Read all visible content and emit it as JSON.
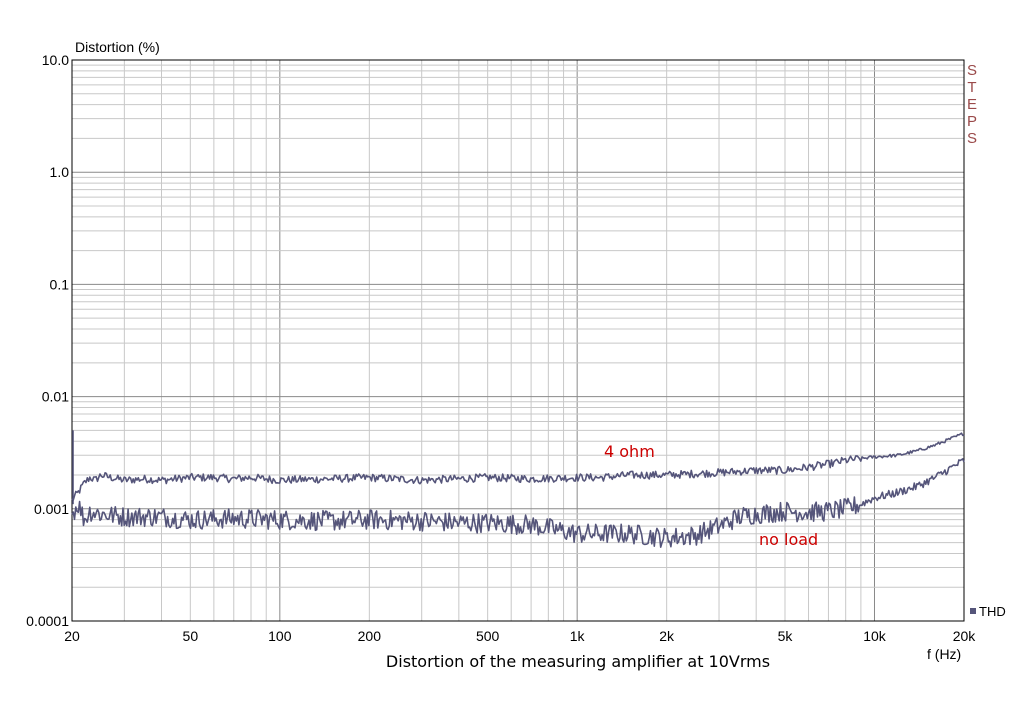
{
  "chart_data": {
    "type": "line",
    "title": "Distortion of the measuring amplifier at 10Vrms",
    "xlabel": "f (Hz)",
    "ylabel": "Distortion (%)",
    "x_scale": "log",
    "y_scale": "log",
    "xlim": [
      20,
      20000
    ],
    "ylim": [
      0.0001,
      10
    ],
    "grid": true,
    "x_ticks": [
      {
        "value": 20,
        "label": "20"
      },
      {
        "value": 50,
        "label": "50"
      },
      {
        "value": 100,
        "label": "100"
      },
      {
        "value": 200,
        "label": "200"
      },
      {
        "value": 500,
        "label": "500"
      },
      {
        "value": 1000,
        "label": "1k"
      },
      {
        "value": 2000,
        "label": "2k"
      },
      {
        "value": 5000,
        "label": "5k"
      },
      {
        "value": 10000,
        "label": "10k"
      },
      {
        "value": 20000,
        "label": "20k"
      }
    ],
    "y_ticks": [
      {
        "value": 10,
        "label": "10.0"
      },
      {
        "value": 1,
        "label": "1.0"
      },
      {
        "value": 0.1,
        "label": "0.1"
      },
      {
        "value": 0.01,
        "label": "0.01"
      },
      {
        "value": 0.001,
        "label": "0.001"
      },
      {
        "value": 0.0001,
        "label": "0.0001"
      }
    ],
    "legend": {
      "position": "bottom-right",
      "entries": [
        "THD"
      ]
    },
    "watermark": "STEPS",
    "series": [
      {
        "label": "4 ohm",
        "color": "#55557a",
        "points": [
          [
            20,
            0.0012
          ],
          [
            21,
            0.0014
          ],
          [
            22,
            0.0017
          ],
          [
            23,
            0.0019
          ],
          [
            24,
            0.0018
          ],
          [
            25,
            0.002
          ],
          [
            27,
            0.0019
          ],
          [
            30,
            0.0018
          ],
          [
            35,
            0.00185
          ],
          [
            40,
            0.0018
          ],
          [
            50,
            0.0019
          ],
          [
            60,
            0.0019
          ],
          [
            70,
            0.00185
          ],
          [
            80,
            0.0019
          ],
          [
            100,
            0.0018
          ],
          [
            150,
            0.00185
          ],
          [
            200,
            0.0019
          ],
          [
            300,
            0.0018
          ],
          [
            400,
            0.00185
          ],
          [
            500,
            0.0019
          ],
          [
            700,
            0.00185
          ],
          [
            1000,
            0.0019
          ],
          [
            1200,
            0.0019
          ],
          [
            1500,
            0.002
          ],
          [
            2000,
            0.002
          ],
          [
            3000,
            0.0021
          ],
          [
            4000,
            0.0022
          ],
          [
            5000,
            0.0022
          ],
          [
            6000,
            0.00235
          ],
          [
            7000,
            0.0025
          ],
          [
            8000,
            0.0027
          ],
          [
            10000,
            0.0029
          ],
          [
            12000,
            0.003
          ],
          [
            14000,
            0.0033
          ],
          [
            16000,
            0.0037
          ],
          [
            18000,
            0.0042
          ],
          [
            20000,
            0.0047
          ]
        ]
      },
      {
        "label": "no load",
        "color": "#55557a",
        "points": [
          [
            20,
            0.0009
          ],
          [
            21,
            0.0011
          ],
          [
            22,
            0.0008
          ],
          [
            23,
            0.00095
          ],
          [
            25,
            0.0009
          ],
          [
            30,
            0.00085
          ],
          [
            40,
            0.00085
          ],
          [
            50,
            0.0008
          ],
          [
            70,
            0.00082
          ],
          [
            100,
            0.0008
          ],
          [
            150,
            0.00078
          ],
          [
            200,
            0.0008
          ],
          [
            300,
            0.00078
          ],
          [
            400,
            0.00075
          ],
          [
            500,
            0.00075
          ],
          [
            700,
            0.00072
          ],
          [
            1000,
            0.0006
          ],
          [
            1500,
            0.0006
          ],
          [
            2000,
            0.00055
          ],
          [
            2500,
            0.00058
          ],
          [
            3000,
            0.0007
          ],
          [
            3500,
            0.00085
          ],
          [
            4000,
            0.0009
          ],
          [
            5000,
            0.00095
          ],
          [
            6000,
            0.00093
          ],
          [
            7000,
            0.00095
          ],
          [
            8000,
            0.001
          ],
          [
            9000,
            0.0011
          ],
          [
            10000,
            0.00125
          ],
          [
            12000,
            0.0014
          ],
          [
            14000,
            0.0016
          ],
          [
            16000,
            0.0019
          ],
          [
            18000,
            0.0023
          ],
          [
            20000,
            0.0027
          ]
        ]
      }
    ]
  },
  "colors": {
    "grid_major": "#8a8a8a",
    "grid_minor": "#c8c8c8",
    "annotation": "#cc0000",
    "watermark": "#9a4a4a",
    "series": "#55557a"
  }
}
